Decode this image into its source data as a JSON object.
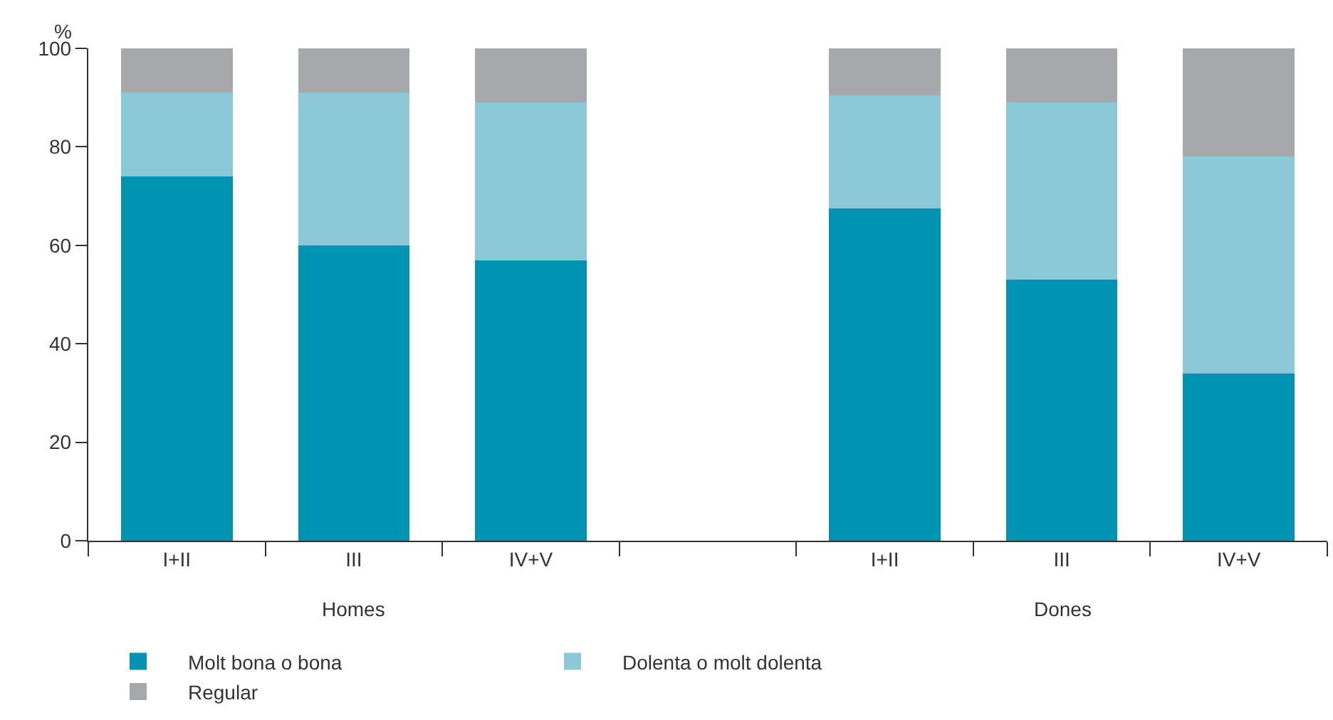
{
  "chart_data": {
    "type": "bar",
    "stacked": true,
    "ylabel": "%",
    "categories": [
      "I+II",
      "III",
      "IV+V",
      null,
      "I+II",
      "III",
      "IV+V"
    ],
    "series": [
      {
        "name": "Molt bona o bona",
        "color": "#0093b2",
        "values": [
          74,
          60,
          57,
          null,
          67.5,
          53,
          34
        ]
      },
      {
        "name": "Dolenta o molt dolenta",
        "color": "#8bc8d8",
        "values": [
          17,
          31,
          32,
          null,
          23,
          36,
          44
        ]
      },
      {
        "name": "Regular",
        "color": "#a7a8ac",
        "values": [
          9,
          9,
          11,
          null,
          9.5,
          11,
          22
        ]
      }
    ],
    "ylim": [
      0,
      100
    ],
    "yticks": [
      0,
      20,
      40,
      60,
      80,
      100
    ],
    "grid": false,
    "legend": "bottom",
    "annotations": [
      "Homes",
      "Dones"
    ]
  }
}
